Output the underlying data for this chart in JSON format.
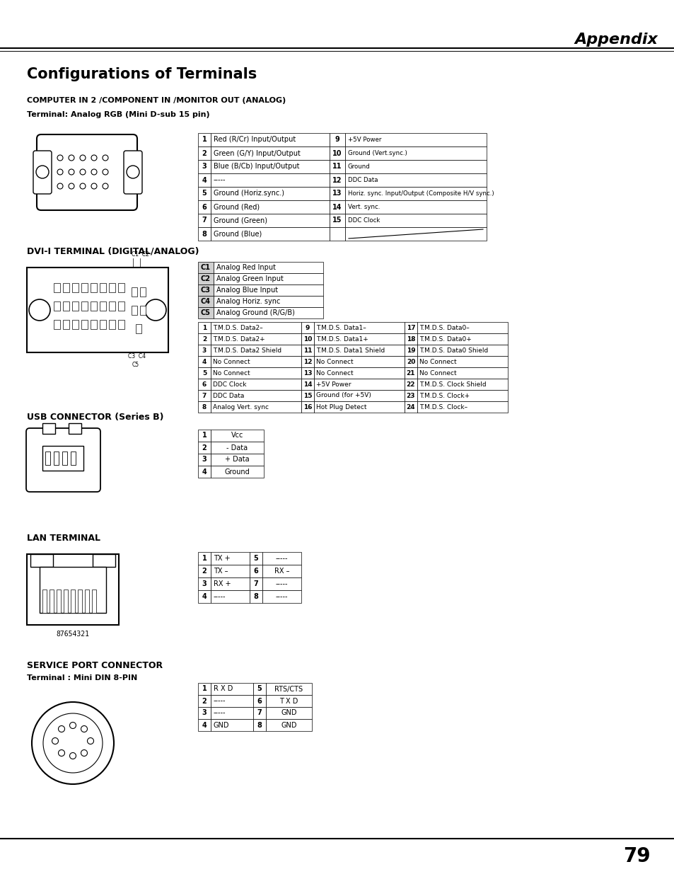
{
  "page_title": "Appendix",
  "main_title": "Configurations of Terminals",
  "section1_title": "COMPUTER IN 2 /COMPONENT IN /MONITOR OUT (ANALOG)",
  "section1_subtitle": "Terminal: Analog RGB (Mini D-sub 15 pin)",
  "section1_table": {
    "col1": [
      [
        "1",
        "Red (R/Cr) Input/Output"
      ],
      [
        "2",
        "Green (G/Y) Input/Output"
      ],
      [
        "3",
        "Blue (B/Cb) Input/Output"
      ],
      [
        "4",
        "-----"
      ],
      [
        "5",
        "Ground (Horiz.sync.)"
      ],
      [
        "6",
        "Ground (Red)"
      ],
      [
        "7",
        "Ground (Green)"
      ],
      [
        "8",
        "Ground (Blue)"
      ]
    ],
    "col2": [
      [
        "9",
        "+5V Power"
      ],
      [
        "10",
        "Ground (Vert.sync.)"
      ],
      [
        "11",
        "Ground"
      ],
      [
        "12",
        "DDC Data"
      ],
      [
        "13",
        "Horiz. sync. Input/Output (Composite H/V sync.)"
      ],
      [
        "14",
        "Vert. sync."
      ],
      [
        "15",
        "DDC Clock"
      ],
      [
        "",
        ""
      ]
    ]
  },
  "section2_title": "DVI-I TERMINAL (DIGITAL/ANALOG)",
  "section2_table_analog": {
    "rows": [
      [
        "C1",
        "Analog Red Input"
      ],
      [
        "C2",
        "Analog Green Input"
      ],
      [
        "C3",
        "Analog Blue Input"
      ],
      [
        "C4",
        "Analog Horiz. sync"
      ],
      [
        "C5",
        "Analog Ground (R/G/B)"
      ]
    ]
  },
  "section2_table_digital": {
    "col1": [
      [
        "1",
        "T.M.D.S. Data2–"
      ],
      [
        "2",
        "T.M.D.S. Data2+"
      ],
      [
        "3",
        "T.M.D.S. Data2 Shield"
      ],
      [
        "4",
        "No Connect"
      ],
      [
        "5",
        "No Connect"
      ],
      [
        "6",
        "DDC Clock"
      ],
      [
        "7",
        "DDC Data"
      ],
      [
        "8",
        "Analog Vert. sync"
      ]
    ],
    "col2": [
      [
        "9",
        "T.M.D.S. Data1–"
      ],
      [
        "10",
        "T.M.D.S. Data1+"
      ],
      [
        "11",
        "T.M.D.S. Data1 Shield"
      ],
      [
        "12",
        "No Connect"
      ],
      [
        "13",
        "No Connect"
      ],
      [
        "14",
        "+5V Power"
      ],
      [
        "15",
        "Ground (for +5V)"
      ],
      [
        "16",
        "Hot Plug Detect"
      ]
    ],
    "col3": [
      [
        "17",
        "T.M.D.S. Data0–"
      ],
      [
        "18",
        "T.M.D.S. Data0+"
      ],
      [
        "19",
        "T.M.D.S. Data0 Shield"
      ],
      [
        "20",
        "No Connect"
      ],
      [
        "21",
        "No Connect"
      ],
      [
        "22",
        "T.M.D.S. Clock Shield"
      ],
      [
        "23",
        "T.M.D.S. Clock+"
      ],
      [
        "24",
        "T.M.D.S. Clock–"
      ]
    ]
  },
  "section3_title": "USB CONNECTOR (Series B)",
  "section3_table": [
    [
      "1",
      "Vcc"
    ],
    [
      "2",
      "- Data"
    ],
    [
      "3",
      "+ Data"
    ],
    [
      "4",
      "Ground"
    ]
  ],
  "section4_title": "LAN TERMINAL",
  "section4_table": {
    "col1": [
      [
        "1",
        "TX +"
      ],
      [
        "2",
        "TX –"
      ],
      [
        "3",
        "RX +"
      ],
      [
        "4",
        "-----"
      ]
    ],
    "col2": [
      [
        "5",
        "-----"
      ],
      [
        "6",
        "RX –"
      ],
      [
        "7",
        "-----"
      ],
      [
        "8",
        "-----"
      ]
    ]
  },
  "section5_title": "SERVICE PORT CONNECTOR",
  "section5_subtitle": "Terminal : Mini DIN 8-PIN",
  "section5_table": {
    "col1": [
      [
        "1",
        "R X D"
      ],
      [
        "2",
        "-----"
      ],
      [
        "3",
        "-----"
      ],
      [
        "4",
        "GND"
      ]
    ],
    "col2": [
      [
        "5",
        "RTS/CTS"
      ],
      [
        "6",
        "T X D"
      ],
      [
        "7",
        "GND"
      ],
      [
        "8",
        "GND"
      ]
    ]
  },
  "page_number": "79",
  "bg_color": "#ffffff"
}
